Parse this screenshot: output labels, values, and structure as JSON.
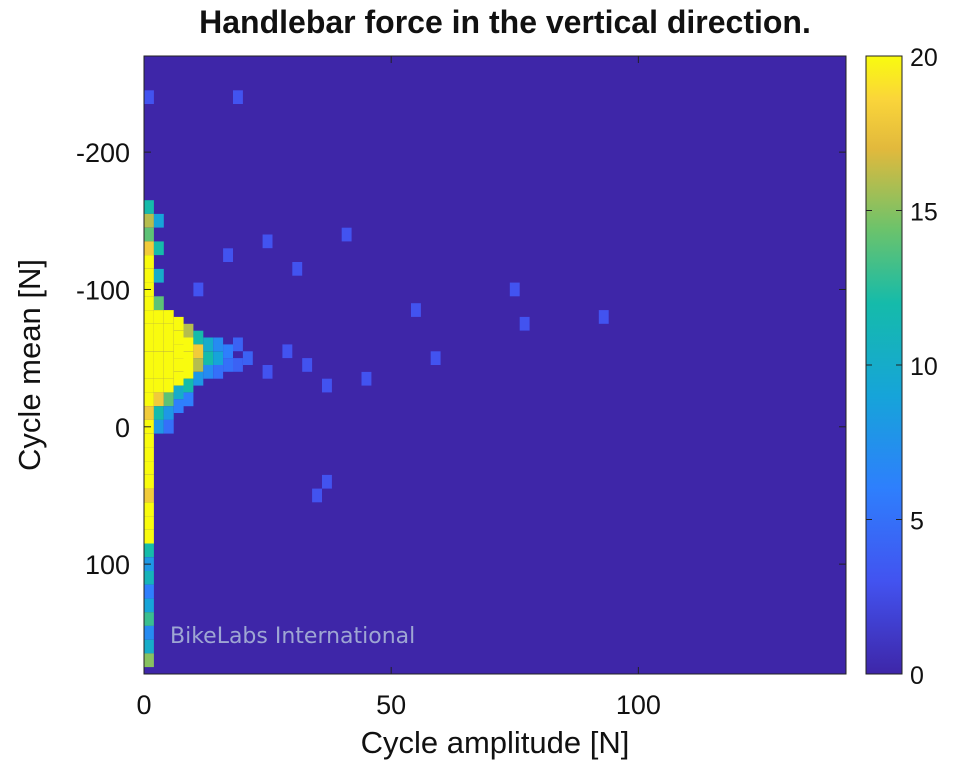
{
  "chart_data": {
    "type": "heatmap",
    "title": "Handlebar force in the vertical direction.",
    "xlabel": "Cycle amplitude [N]",
    "ylabel": "Cycle mean [N]",
    "x_ticks": [
      0,
      50,
      100
    ],
    "y_ticks": [
      -200,
      -100,
      0,
      100
    ],
    "y_tick_labels": [
      "-200",
      "-100",
      "0",
      "100"
    ],
    "xlim": [
      0,
      142
    ],
    "ylim": [
      -270,
      180
    ],
    "y_reversed": true,
    "colorbar": {
      "min": 0,
      "max": 20,
      "ticks": [
        0,
        5,
        10,
        15,
        20
      ],
      "colormap": "parula"
    },
    "bin_width": {
      "x": 2,
      "y": 5
    },
    "cells": [
      {
        "x": 0,
        "y": -160,
        "v": 12
      },
      {
        "x": 0,
        "y": -150,
        "v": 16
      },
      {
        "x": 0,
        "y": -140,
        "v": 14
      },
      {
        "x": 0,
        "y": -130,
        "v": 18
      },
      {
        "x": 0,
        "y": -120,
        "v": 20
      },
      {
        "x": 0,
        "y": -110,
        "v": 20
      },
      {
        "x": 0,
        "y": -100,
        "v": 20
      },
      {
        "x": 0,
        "y": -90,
        "v": 20
      },
      {
        "x": 0,
        "y": -80,
        "v": 20
      },
      {
        "x": 0,
        "y": -70,
        "v": 20
      },
      {
        "x": 0,
        "y": -60,
        "v": 20
      },
      {
        "x": 0,
        "y": -50,
        "v": 20
      },
      {
        "x": 0,
        "y": -40,
        "v": 20
      },
      {
        "x": 0,
        "y": -30,
        "v": 20
      },
      {
        "x": 0,
        "y": -20,
        "v": 20
      },
      {
        "x": 0,
        "y": -10,
        "v": 18
      },
      {
        "x": 0,
        "y": 0,
        "v": 20
      },
      {
        "x": 0,
        "y": 10,
        "v": 20
      },
      {
        "x": 0,
        "y": 20,
        "v": 20
      },
      {
        "x": 0,
        "y": 30,
        "v": 20
      },
      {
        "x": 0,
        "y": 40,
        "v": 20
      },
      {
        "x": 0,
        "y": 50,
        "v": 18
      },
      {
        "x": 0,
        "y": 60,
        "v": 20
      },
      {
        "x": 0,
        "y": 70,
        "v": 20
      },
      {
        "x": 0,
        "y": 80,
        "v": 20
      },
      {
        "x": 0,
        "y": 90,
        "v": 12
      },
      {
        "x": 0,
        "y": 100,
        "v": 8
      },
      {
        "x": 0,
        "y": 110,
        "v": 11
      },
      {
        "x": 0,
        "y": 120,
        "v": 6
      },
      {
        "x": 0,
        "y": 130,
        "v": 9
      },
      {
        "x": 0,
        "y": 140,
        "v": 13
      },
      {
        "x": 0,
        "y": 150,
        "v": 7
      },
      {
        "x": 0,
        "y": 160,
        "v": 10
      },
      {
        "x": 0,
        "y": 170,
        "v": 15
      },
      {
        "x": 2,
        "y": -150,
        "v": 9
      },
      {
        "x": 2,
        "y": -130,
        "v": 12
      },
      {
        "x": 2,
        "y": -110,
        "v": 10
      },
      {
        "x": 2,
        "y": -90,
        "v": 14
      },
      {
        "x": 2,
        "y": -80,
        "v": 20
      },
      {
        "x": 2,
        "y": -70,
        "v": 20
      },
      {
        "x": 2,
        "y": -60,
        "v": 20
      },
      {
        "x": 2,
        "y": -50,
        "v": 20
      },
      {
        "x": 2,
        "y": -40,
        "v": 20
      },
      {
        "x": 2,
        "y": -30,
        "v": 20
      },
      {
        "x": 2,
        "y": -20,
        "v": 18
      },
      {
        "x": 2,
        "y": -10,
        "v": 12
      },
      {
        "x": 2,
        "y": 0,
        "v": 8
      },
      {
        "x": 4,
        "y": -80,
        "v": 20
      },
      {
        "x": 4,
        "y": -70,
        "v": 20
      },
      {
        "x": 4,
        "y": -60,
        "v": 20
      },
      {
        "x": 4,
        "y": -50,
        "v": 20
      },
      {
        "x": 4,
        "y": -40,
        "v": 20
      },
      {
        "x": 4,
        "y": -30,
        "v": 20
      },
      {
        "x": 4,
        "y": -20,
        "v": 14
      },
      {
        "x": 4,
        "y": -10,
        "v": 8
      },
      {
        "x": 4,
        "y": 0,
        "v": 5
      },
      {
        "x": 6,
        "y": -75,
        "v": 20
      },
      {
        "x": 6,
        "y": -65,
        "v": 20
      },
      {
        "x": 6,
        "y": -55,
        "v": 20
      },
      {
        "x": 6,
        "y": -45,
        "v": 20
      },
      {
        "x": 6,
        "y": -35,
        "v": 20
      },
      {
        "x": 6,
        "y": -25,
        "v": 10
      },
      {
        "x": 6,
        "y": -15,
        "v": 6
      },
      {
        "x": 8,
        "y": -70,
        "v": 16
      },
      {
        "x": 8,
        "y": -60,
        "v": 20
      },
      {
        "x": 8,
        "y": -50,
        "v": 20
      },
      {
        "x": 8,
        "y": -40,
        "v": 20
      },
      {
        "x": 8,
        "y": -30,
        "v": 12
      },
      {
        "x": 8,
        "y": -20,
        "v": 6
      },
      {
        "x": 10,
        "y": -65,
        "v": 12
      },
      {
        "x": 10,
        "y": -55,
        "v": 18
      },
      {
        "x": 10,
        "y": -45,
        "v": 16
      },
      {
        "x": 10,
        "y": -35,
        "v": 8
      },
      {
        "x": 12,
        "y": -60,
        "v": 10
      },
      {
        "x": 12,
        "y": -50,
        "v": 12
      },
      {
        "x": 12,
        "y": -40,
        "v": 7
      },
      {
        "x": 14,
        "y": -60,
        "v": 7
      },
      {
        "x": 14,
        "y": -50,
        "v": 9
      },
      {
        "x": 14,
        "y": -40,
        "v": 5
      },
      {
        "x": 16,
        "y": -55,
        "v": 6
      },
      {
        "x": 16,
        "y": -45,
        "v": 5
      },
      {
        "x": 18,
        "y": -60,
        "v": 4
      },
      {
        "x": 18,
        "y": -45,
        "v": 4
      },
      {
        "x": 20,
        "y": -50,
        "v": 4
      },
      {
        "x": 24,
        "y": -40,
        "v": 3
      },
      {
        "x": 28,
        "y": -55,
        "v": 3
      },
      {
        "x": 32,
        "y": -45,
        "v": 3
      },
      {
        "x": 36,
        "y": -30,
        "v": 3
      },
      {
        "x": 44,
        "y": -35,
        "v": 3
      },
      {
        "x": 10,
        "y": -100,
        "v": 3
      },
      {
        "x": 16,
        "y": -125,
        "v": 3
      },
      {
        "x": 24,
        "y": -135,
        "v": 3
      },
      {
        "x": 30,
        "y": -115,
        "v": 3
      },
      {
        "x": 40,
        "y": -140,
        "v": 3
      },
      {
        "x": 54,
        "y": -85,
        "v": 3
      },
      {
        "x": 58,
        "y": -50,
        "v": 3
      },
      {
        "x": 74,
        "y": -100,
        "v": 3
      },
      {
        "x": 76,
        "y": -75,
        "v": 3
      },
      {
        "x": 92,
        "y": -80,
        "v": 3
      },
      {
        "x": 36,
        "y": 40,
        "v": 3
      },
      {
        "x": 34,
        "y": 50,
        "v": 3
      },
      {
        "x": 18,
        "y": -240,
        "v": 3
      },
      {
        "x": 0,
        "y": -240,
        "v": 3
      }
    ]
  },
  "watermark": "BikeLabs International"
}
